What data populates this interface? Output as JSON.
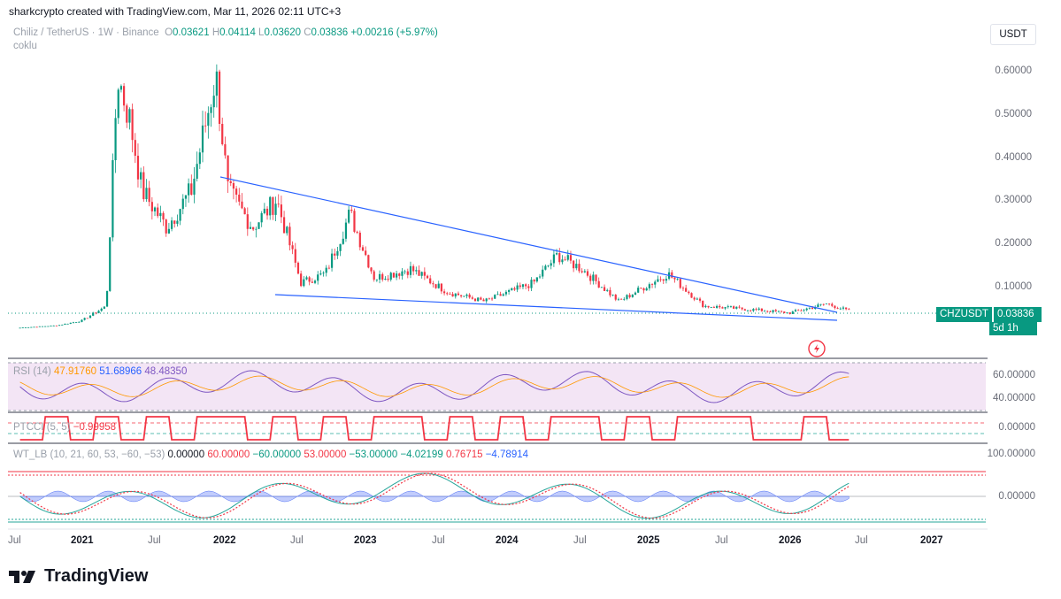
{
  "header": {
    "publish_line": "sharkcrypto created with TradingView.com, Mar 11, 2026 02:11 UTC+3",
    "symbol": "Chiliz / TetherUS · 1W · Binance",
    "ohlc": {
      "o_label": "O",
      "o": "0.03621",
      "h_label": "H",
      "h": "0.04114",
      "l_label": "L",
      "l": "0.03620",
      "c_label": "C",
      "c": "0.03836",
      "change": "+0.00216 (+5.97%)"
    },
    "sub_label": "coklu",
    "currency": "USDT"
  },
  "price_axis": {
    "ticks": [
      "0.60000",
      "0.50000",
      "0.40000",
      "0.30000",
      "0.20000",
      "0.10000",
      "0.00000"
    ]
  },
  "price_tag": {
    "ticker": "CHZUSDT",
    "last": "0.03836",
    "countdown": "5d 1h"
  },
  "rsi": {
    "label": "RSI (14)",
    "v1": "47.91760",
    "v2": "51.68966",
    "v3": "48.48350",
    "ticks": [
      "60.00000",
      "40.00000"
    ]
  },
  "ptcci": {
    "label": "PTCCI (5, 5)",
    "value": "−0.99958",
    "tick": "0.00000"
  },
  "wt": {
    "label": "WT_LB (10, 21, 60, 53, −60, −53)",
    "values": [
      "0.00000",
      "60.00000",
      "−60.00000",
      "53.00000",
      "−53.00000",
      "−4.02199",
      "0.76715",
      "−4.78914"
    ],
    "ticks": [
      "100.00000",
      "0.00000"
    ]
  },
  "time_axis": {
    "labels": [
      "Jul",
      "2021",
      "Jul",
      "2022",
      "Jul",
      "2023",
      "Jul",
      "2024",
      "Jul",
      "2025",
      "Jul",
      "2026",
      "Jul",
      "2027"
    ]
  },
  "brand": "TradingView",
  "colors": {
    "up": "#089981",
    "down": "#f23645",
    "trend": "#2962ff",
    "rsi_bg": "#f3e5f5",
    "rsi_line": "#7e57c2",
    "rsi_ma": "#ff9800",
    "ptcci": "#f23645",
    "wt_red": "#f23645",
    "wt_green": "#26a69a",
    "wt_blue": "#4c6ef5"
  },
  "chart_data": {
    "type": "candlestick",
    "title": "Chiliz / TetherUS · 1W · Binance",
    "ylim": [
      0,
      0.65
    ],
    "x_range": [
      "2020-06",
      "2027-02"
    ],
    "approx_path": [
      {
        "date": "2020-07",
        "close": 0.003
      },
      {
        "date": "2020-10",
        "close": 0.008
      },
      {
        "date": "2020-12",
        "close": 0.018
      },
      {
        "date": "2021-02",
        "close": 0.05
      },
      {
        "date": "2021-03",
        "close": 0.55
      },
      {
        "date": "2021-04",
        "close": 0.45
      },
      {
        "date": "2021-05",
        "close": 0.3
      },
      {
        "date": "2021-07",
        "close": 0.22
      },
      {
        "date": "2021-09",
        "close": 0.3
      },
      {
        "date": "2021-11",
        "close": 0.55
      },
      {
        "date": "2021-12",
        "close": 0.3
      },
      {
        "date": "2022-02",
        "close": 0.22
      },
      {
        "date": "2022-04",
        "close": 0.28
      },
      {
        "date": "2022-06",
        "close": 0.1
      },
      {
        "date": "2022-08",
        "close": 0.12
      },
      {
        "date": "2022-10",
        "close": 0.25
      },
      {
        "date": "2022-12",
        "close": 0.11
      },
      {
        "date": "2023-03",
        "close": 0.13
      },
      {
        "date": "2023-06",
        "close": 0.08
      },
      {
        "date": "2023-09",
        "close": 0.06
      },
      {
        "date": "2024-01",
        "close": 0.1
      },
      {
        "date": "2024-03",
        "close": 0.16
      },
      {
        "date": "2024-05",
        "close": 0.13
      },
      {
        "date": "2024-08",
        "close": 0.06
      },
      {
        "date": "2024-12",
        "close": 0.12
      },
      {
        "date": "2025-03",
        "close": 0.05
      },
      {
        "date": "2025-08",
        "close": 0.04
      },
      {
        "date": "2025-10",
        "close": 0.035
      },
      {
        "date": "2026-01",
        "close": 0.055
      },
      {
        "date": "2026-03",
        "close": 0.03836
      }
    ],
    "trendlines": [
      {
        "from": {
          "date": "2021-12",
          "price": 0.35
        },
        "to": {
          "date": "2026-03",
          "price": 0.04
        }
      },
      {
        "from": {
          "date": "2022-05",
          "price": 0.09
        },
        "to": {
          "date": "2026-03",
          "price": 0.03
        }
      }
    ]
  }
}
